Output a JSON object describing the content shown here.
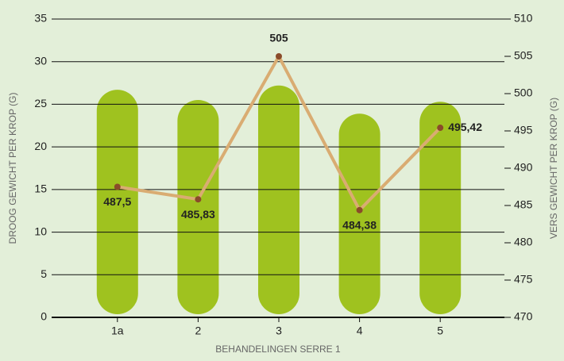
{
  "chart_data": {
    "type": "combo",
    "x_label": "BEHANDELINGEN SERRE 1",
    "y_label": "DROOG GEWICHT PER KROP (G)",
    "y2_label": "VERS GEWICHT PER KROP (G)",
    "categories": [
      "1a",
      "2",
      "3",
      "4",
      "5"
    ],
    "series": [
      {
        "type": "bar",
        "color": "#9fc21f",
        "values": [
          26.7,
          25.5,
          27.2,
          23.9,
          25.3
        ]
      },
      {
        "type": "line",
        "axis": "y2",
        "color": "#d9ac72",
        "marker_color": "#8a4b2a",
        "values": [
          487.5,
          485.83,
          505,
          484.38,
          495.42
        ],
        "value_labels": [
          "487,5",
          "485,83",
          "505",
          "484,38",
          "495,42"
        ]
      }
    ],
    "ylim": [
      0,
      35
    ],
    "yticks": [
      0,
      5,
      10,
      15,
      20,
      25,
      30,
      35
    ],
    "y2lim": [
      470,
      510
    ],
    "y2ticks": [
      470,
      475,
      480,
      485,
      490,
      495,
      500,
      505,
      510
    ],
    "grid": true
  }
}
